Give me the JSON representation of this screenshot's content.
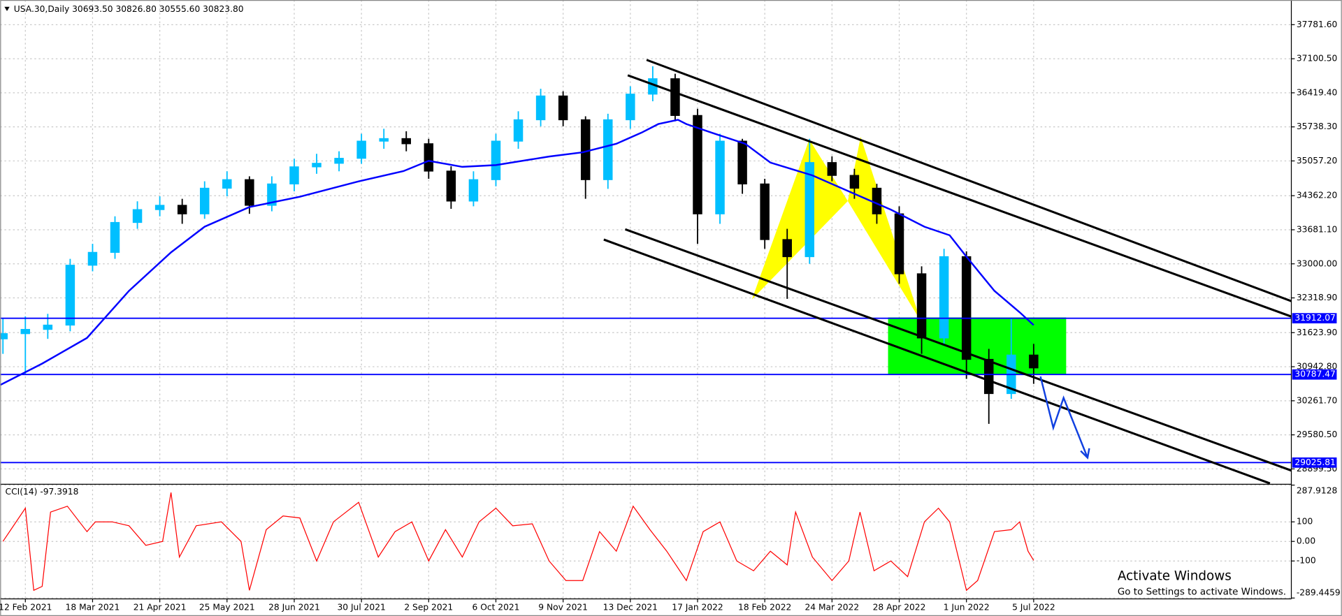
{
  "chart_data": [
    {
      "type": "candlestick",
      "title": "USA.30,Daily",
      "subtitle": "30693.50 30826.80 30555.60 30823.80",
      "x": [
        1,
        9,
        17,
        25,
        33,
        41,
        49,
        57,
        65,
        73,
        81,
        89,
        97,
        105,
        113,
        121,
        129,
        137,
        145,
        153,
        161,
        169,
        177,
        185,
        193,
        201,
        209,
        217,
        225,
        233,
        241,
        249,
        257,
        265,
        273,
        281,
        289,
        297,
        305,
        313,
        321,
        329,
        337,
        345,
        353,
        361,
        369
      ],
      "open": [
        31500,
        31604,
        31689,
        31775,
        32972,
        33229,
        33827,
        34084,
        34170,
        33999,
        34512,
        34683,
        34170,
        34597,
        34939,
        35010,
        35110,
        35453,
        35504,
        35401,
        34854,
        34255,
        34683,
        35453,
        35880,
        36356,
        35880,
        34683,
        35880,
        36393,
        36701,
        35966,
        33999,
        35453,
        34597,
        33485,
        33143,
        35025,
        34768,
        34512,
        33999,
        32801,
        31518,
        33143,
        31090,
        30406,
        31176
      ],
      "high": [
        31900,
        31950,
        32000,
        33100,
        33400,
        33950,
        34250,
        34350,
        34300,
        34650,
        34850,
        34750,
        34750,
        35100,
        35200,
        35250,
        35600,
        35700,
        35650,
        35500,
        34950,
        34850,
        35600,
        36050,
        36500,
        36450,
        35950,
        36000,
        36550,
        36950,
        36800,
        36100,
        35600,
        35500,
        34700,
        33700,
        35500,
        35150,
        34900,
        34600,
        34150,
        32950,
        33300,
        33250,
        31300,
        31900,
        31400
      ],
      "low": [
        31200,
        30800,
        31500,
        31650,
        32850,
        33100,
        33700,
        33950,
        33800,
        33900,
        34350,
        34000,
        34050,
        34450,
        34800,
        34850,
        35000,
        35300,
        35250,
        34700,
        34100,
        34150,
        34550,
        35300,
        35750,
        35750,
        34300,
        34500,
        35700,
        36250,
        35850,
        33400,
        33800,
        34400,
        33300,
        32300,
        33000,
        34650,
        34300,
        33800,
        32600,
        31200,
        31400,
        30700,
        29800,
        30300,
        30600
      ],
      "close": [
        31604,
        31689,
        31775,
        32972,
        33229,
        33827,
        34084,
        34170,
        33999,
        34512,
        34683,
        34170,
        34597,
        34939,
        35010,
        35110,
        35453,
        35504,
        35401,
        34854,
        34255,
        34683,
        35453,
        35880,
        36356,
        35880,
        34683,
        35880,
        36393,
        36701,
        35966,
        33999,
        35453,
        34597,
        33485,
        33143,
        35025,
        34768,
        34512,
        33999,
        32801,
        31518,
        33143,
        31090,
        30406,
        31176,
        30919
      ],
      "up_color": "#00bfff",
      "down_color": "#000000",
      "moving_average": {
        "color": "#0000ff",
        "x": [
          0,
          15,
          31,
          46,
          61,
          73,
          89,
          107,
          128,
          144,
          153,
          165,
          177,
          196,
          208,
          220,
          229,
          235,
          242,
          245,
          254,
          266,
          275,
          290,
          306,
          318,
          330,
          339,
          345,
          355,
          364,
          369
        ],
        "values": [
          30577,
          31005,
          31518,
          32459,
          33229,
          33742,
          34135,
          34341,
          34649,
          34854,
          35059,
          34939,
          34974,
          35145,
          35230,
          35401,
          35623,
          35795,
          35880,
          35795,
          35623,
          35401,
          35025,
          34768,
          34375,
          34084,
          33742,
          33571,
          33143,
          32459,
          32031,
          31775
        ]
      },
      "hlines": [
        {
          "value": 31912.07,
          "color": "#0000ff"
        },
        {
          "value": 30787.47,
          "color": "#0000ff"
        },
        {
          "value": 29025.81,
          "color": "#0000ff"
        }
      ],
      "xlim": [
        0,
        461
      ],
      "ylim": [
        28610,
        38275
      ],
      "yticks": [
        {
          "value": 37781.6,
          "label": "37781.60"
        },
        {
          "value": 37100.5,
          "label": "37100.50"
        },
        {
          "value": 36419.4,
          "label": "36419.40"
        },
        {
          "value": 35738.3,
          "label": "35738.30"
        },
        {
          "value": 35057.2,
          "label": "35057.20"
        },
        {
          "value": 34362.2,
          "label": "34362.20"
        },
        {
          "value": 33681.1,
          "label": "33681.10"
        },
        {
          "value": 33000,
          "label": "33000.00"
        },
        {
          "value": 32318.9,
          "label": "32318.90"
        },
        {
          "value": 31623.9,
          "label": "31623.90"
        },
        {
          "value": 30942.8,
          "label": "30942.80"
        },
        {
          "value": 30261.7,
          "label": "30261.70"
        },
        {
          "value": 29580.5,
          "label": "29580.50"
        },
        {
          "value": 28899.5,
          "label": "28899.50"
        }
      ],
      "xticks": [
        {
          "value": 9,
          "label": "12 Feb 2021"
        },
        {
          "value": 33,
          "label": "18 Mar 2021"
        },
        {
          "value": 57,
          "label": "21 Apr 2021"
        },
        {
          "value": 81,
          "label": "25 May 2021"
        },
        {
          "value": 105,
          "label": "28 Jun 2021"
        },
        {
          "value": 129,
          "label": "30 Jul 2021"
        },
        {
          "value": 153,
          "label": "2 Sep 2021"
        },
        {
          "value": 177,
          "label": "6 Oct 2021"
        },
        {
          "value": 201,
          "label": "9 Nov 2021"
        },
        {
          "value": 225,
          "label": "13 Dec 2021"
        },
        {
          "value": 249,
          "label": "17 Jan 2022"
        },
        {
          "value": 273,
          "label": "18 Feb 2022"
        },
        {
          "value": 297,
          "label": "24 Mar 2022"
        },
        {
          "value": 321,
          "label": "28 Apr 2022"
        },
        {
          "value": 345,
          "label": "1 Jun 2022"
        },
        {
          "value": 369,
          "label": "5 Jul 2022"
        }
      ],
      "grid": true
    },
    {
      "type": "line",
      "title": "CCI(14) -97.3918",
      "color": "#ff0000",
      "x": [
        1,
        9,
        12,
        15,
        18,
        24,
        31,
        34,
        40,
        46,
        52,
        58,
        61,
        64,
        70,
        79,
        86,
        89,
        95,
        101,
        107,
        113,
        119,
        128,
        135,
        141,
        147,
        153,
        159,
        165,
        171,
        177,
        183,
        190,
        196,
        202,
        208,
        214,
        220,
        226,
        232,
        238,
        245,
        251,
        257,
        263,
        269,
        275,
        281,
        284,
        290,
        297,
        303,
        307,
        312,
        318,
        324,
        330,
        335,
        339,
        345,
        349,
        355,
        361,
        364,
        367,
        369
      ],
      "values": [
        0,
        170,
        -250,
        -230,
        150,
        180,
        50,
        100,
        100,
        80,
        -20,
        0,
        250,
        -80,
        80,
        100,
        0,
        -250,
        60,
        130,
        120,
        -100,
        100,
        200,
        -80,
        50,
        100,
        -100,
        60,
        -80,
        100,
        170,
        80,
        90,
        -100,
        -200,
        -200,
        50,
        -50,
        180,
        60,
        -50,
        -200,
        50,
        100,
        -100,
        -150,
        -50,
        -120,
        150,
        -80,
        -200,
        -100,
        150,
        -150,
        -100,
        -180,
        100,
        170,
        100,
        -250,
        -200,
        50,
        60,
        100,
        -50,
        -97.3918
      ],
      "xlim": [
        0,
        461
      ],
      "ylim": [
        -289.4459,
        287.9128
      ],
      "yticks": [
        287.9128,
        100,
        {
          "value": 0,
          "label": "0.00"
        },
        -100,
        -289.4459
      ],
      "grid": true
    }
  ],
  "watermark": {
    "title": "Activate Windows",
    "text": "Go to Settings to activate Windows."
  }
}
